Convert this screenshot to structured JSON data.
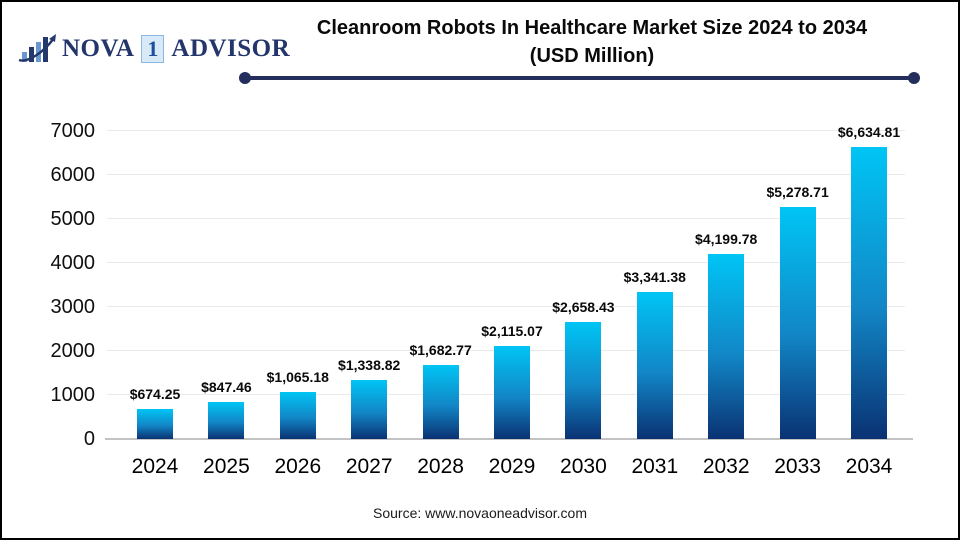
{
  "logo": {
    "icon": "bar-chart-growth-icon",
    "part1": "NOVA",
    "badge": "1",
    "part2": "ADVISOR"
  },
  "title": {
    "line1": "Cleanroom Robots In Healthcare Market Size 2024 to 2034",
    "line2": "(USD Million)"
  },
  "footer": {
    "source": "Source: www.novaoneadvisor.com"
  },
  "colors": {
    "accent_navy": "#232E5C",
    "bar_gradient_top": "#00C5F5",
    "bar_gradient_mid": "#1286C6",
    "bar_gradient_bottom": "#0A3273",
    "gridline": "#EAEAEA",
    "axis_line": "#C3C3C3",
    "logo_navy": "#23356B"
  },
  "chart_data": {
    "type": "bar",
    "title": "Cleanroom Robots In Healthcare Market Size 2024 to 2034 (USD Million)",
    "categories": [
      "2024",
      "2025",
      "2026",
      "2027",
      "2028",
      "2029",
      "2030",
      "2031",
      "2032",
      "2033",
      "2034"
    ],
    "values": [
      674.25,
      847.46,
      1065.18,
      1338.82,
      1682.77,
      2115.07,
      2658.43,
      3341.38,
      4199.78,
      5278.71,
      6634.81
    ],
    "value_labels": [
      "$674.25",
      "$847.46",
      "$1,065.18",
      "$1,338.82",
      "$1,682.77",
      "$2,115.07",
      "$2,658.43",
      "$3,341.38",
      "$4,199.78",
      "$5,278.71",
      "$6,634.81"
    ],
    "xlabel": "",
    "ylabel": "",
    "ylim": [
      0,
      7000
    ],
    "ytick_interval": 1000,
    "yticks": [
      0,
      1000,
      2000,
      3000,
      4000,
      5000,
      6000,
      7000
    ],
    "grid": true,
    "legend": false
  }
}
